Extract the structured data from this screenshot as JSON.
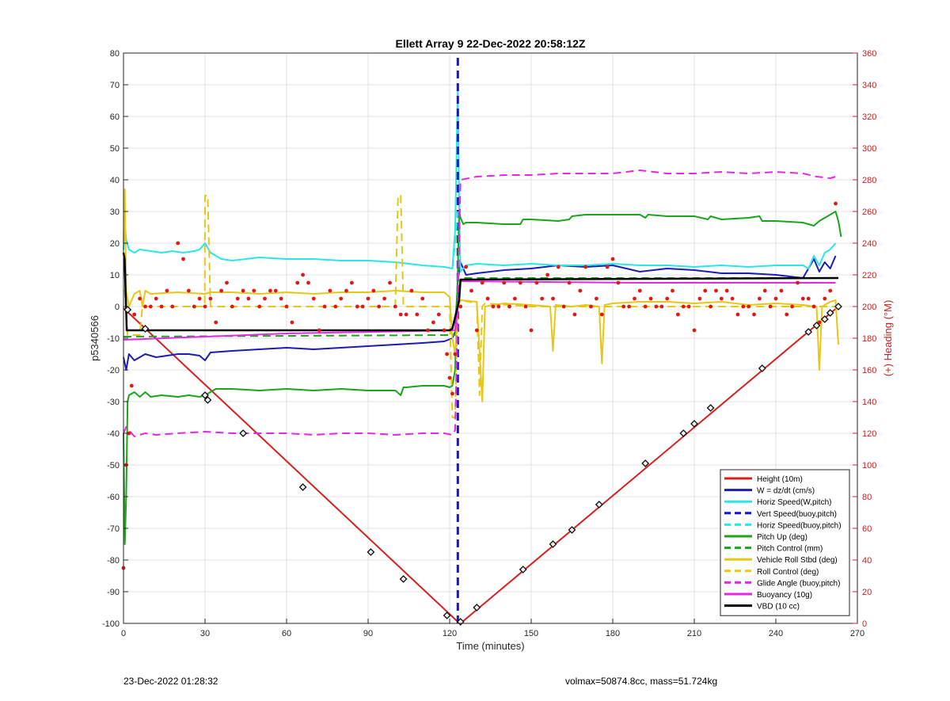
{
  "footer": {
    "left": "23-Dec-2022 01:28:32",
    "right": "volmax=50874.8cc, mass=51.724kg"
  },
  "colors": {
    "height": "#d42020",
    "w": "#1c1cb4",
    "horiz_w": "#2ae6e6",
    "vert_buoy": "#1414d2",
    "horiz_buoy": "#2ae6e6",
    "pitch": "#1aa51a",
    "pitch_control": "#1aa51a",
    "roll": "#e6c814",
    "roll_control": "#e6c814",
    "glide": "#e628e6",
    "buoyancy": "#e628e6",
    "vbd": "#000000",
    "heading": "#e01818",
    "right_axis": "#cc2020"
  },
  "chart_data": {
    "type": "line",
    "title": "Ellett Array 9 22-Dec-2022 20:58:12Z",
    "xlabel": "Time (minutes)",
    "ylabel": "p5340566",
    "y2label": "(+) Heading (°M)",
    "xlim": [
      0,
      270
    ],
    "ylim": [
      -100,
      80
    ],
    "y2lim": [
      0,
      360
    ],
    "xticks": [
      0,
      30,
      60,
      90,
      120,
      150,
      180,
      210,
      240,
      270
    ],
    "yticks": [
      -100,
      -90,
      -80,
      -70,
      -60,
      -50,
      -40,
      -30,
      -20,
      -10,
      0,
      10,
      20,
      30,
      40,
      50,
      60,
      70,
      80
    ],
    "y2ticks": [
      0,
      20,
      40,
      60,
      80,
      100,
      120,
      140,
      160,
      180,
      200,
      220,
      240,
      260,
      280,
      300,
      320,
      340,
      360
    ],
    "grid": true,
    "legend_position": "lower-right",
    "series": [
      {
        "name": "Height (10m)",
        "key": "height",
        "style": "solid",
        "width": 2,
        "x": [
          0,
          123,
          124,
          263
        ],
        "y": [
          -0.5,
          -99.5,
          -100,
          0
        ]
      },
      {
        "name": "W = dz/dt (cm/s)",
        "key": "w",
        "style": "solid",
        "width": 2,
        "x": [
          0,
          1,
          2,
          4,
          8,
          12,
          16,
          20,
          24,
          28,
          30,
          32,
          40,
          50,
          60,
          70,
          80,
          90,
          100,
          110,
          118,
          121,
          122,
          123,
          124,
          126,
          130,
          140,
          150,
          160,
          170,
          180,
          190,
          200,
          210,
          220,
          230,
          240,
          250,
          252,
          254,
          256,
          258,
          260,
          262
        ],
        "y": [
          -16,
          -20,
          -15,
          -17,
          -15,
          -16,
          -15.5,
          -15,
          -15,
          -15.5,
          -17,
          -14.5,
          -14,
          -13.5,
          -13,
          -13.5,
          -13,
          -12.5,
          -12,
          -11.5,
          -11,
          -10,
          -8,
          8,
          14,
          10,
          10.5,
          11.5,
          12,
          13,
          12.5,
          13,
          11,
          12,
          11.5,
          10.5,
          10.5,
          10,
          9,
          12,
          15,
          11,
          14,
          12,
          16
        ]
      },
      {
        "name": "Horiz Speed(W,pitch)",
        "key": "horiz_w",
        "style": "solid",
        "width": 2,
        "x": [
          0,
          0.5,
          1,
          2,
          4,
          6,
          10,
          14,
          18,
          22,
          26,
          28,
          30,
          32,
          36,
          40,
          50,
          60,
          70,
          80,
          90,
          100,
          110,
          118,
          121,
          122,
          123,
          123.5,
          124,
          126,
          130,
          140,
          150,
          160,
          170,
          180,
          190,
          200,
          210,
          220,
          230,
          240,
          250,
          252,
          254,
          256,
          258,
          260,
          262
        ],
        "y": [
          18,
          26,
          21,
          18,
          17,
          18,
          17.5,
          17,
          17.5,
          17,
          17.5,
          18,
          20,
          17,
          15,
          14.5,
          15.5,
          15,
          15,
          14.5,
          14.5,
          14,
          13,
          12.5,
          12,
          24,
          69,
          32,
          11,
          13,
          13.5,
          13,
          13.5,
          13,
          13,
          13.5,
          13,
          13,
          12.5,
          13,
          12.5,
          13,
          13,
          12,
          16,
          13,
          17,
          18,
          20
        ]
      },
      {
        "name": "Vert Speed(buoy,pitch)",
        "key": "vert_buoy",
        "style": "dashed",
        "width": 3,
        "x": [
          123,
          123,
          123,
          123
        ],
        "y": [
          -100,
          -40,
          20,
          80
        ]
      },
      {
        "name": "Horiz Speed(buoy,pitch)",
        "key": "horiz_buoy",
        "style": "dashed",
        "width": 2,
        "x": [
          121,
          122,
          123
        ],
        "y": [
          12,
          20,
          30
        ]
      },
      {
        "name": "Pitch Up (deg)",
        "key": "pitch",
        "style": "solid",
        "width": 2,
        "x": [
          0,
          0.5,
          1,
          1.5,
          2,
          4,
          6,
          8,
          10,
          14,
          20,
          24,
          28,
          30,
          34,
          40,
          50,
          60,
          70,
          80,
          90,
          100,
          102,
          103,
          104,
          110,
          118,
          120,
          121,
          122,
          123,
          123.5,
          124,
          125,
          126,
          130,
          140,
          146,
          147,
          150,
          160,
          164,
          165,
          170,
          180,
          190,
          192,
          193,
          200,
          210,
          215,
          216,
          220,
          230,
          234,
          235,
          240,
          250,
          252,
          254,
          256,
          258,
          260,
          262,
          263,
          264
        ],
        "y": [
          -40,
          -75,
          -60,
          -30,
          -28,
          -27,
          -28.5,
          -27,
          -28.5,
          -28,
          -28.5,
          -28,
          -28.5,
          -28,
          -26,
          -26,
          -26.5,
          -26,
          -26.5,
          -26,
          -26.5,
          -26.5,
          -28,
          -25.5,
          -25.5,
          -25,
          -25,
          -25.5,
          -25,
          -20,
          12,
          30,
          28,
          26,
          26.5,
          26.5,
          26,
          26,
          27.5,
          27.5,
          27,
          27.5,
          28.5,
          29,
          29,
          29,
          28,
          29,
          28.5,
          28.5,
          27.5,
          28.5,
          27.5,
          28,
          28.5,
          27,
          27,
          26.5,
          26,
          25.5,
          27,
          28,
          29,
          30,
          27,
          22
        ]
      },
      {
        "name": "Pitch Control (mm)",
        "key": "pitch_control",
        "style": "dashed",
        "width": 2,
        "x": [
          0,
          122,
          123,
          124,
          263
        ],
        "y": [
          -9.5,
          -9,
          0,
          9,
          9
        ]
      },
      {
        "name": "Vehicle Roll Stbd (deg)",
        "key": "roll",
        "style": "solid",
        "width": 2,
        "x": [
          0,
          0.5,
          1,
          2,
          4,
          6,
          7,
          8,
          10,
          20,
          30,
          32,
          40,
          50,
          60,
          70,
          80,
          90,
          100,
          110,
          118,
          120,
          121,
          122,
          123,
          124,
          130,
          132,
          133,
          140,
          150,
          157,
          158,
          159,
          165,
          170,
          175,
          176,
          177,
          180,
          190,
          200,
          210,
          220,
          230,
          240,
          250,
          255,
          256,
          257,
          260,
          262,
          263
        ],
        "y": [
          20,
          37,
          5,
          0,
          4,
          5,
          0,
          5,
          4,
          4.5,
          4,
          4.5,
          4.5,
          4,
          4.5,
          4,
          4.5,
          4.5,
          5,
          4.5,
          4.5,
          3,
          -10,
          -15,
          0,
          2,
          1.5,
          -30,
          0,
          1,
          0.5,
          0,
          -14,
          0.5,
          0,
          0.5,
          0,
          -18,
          0.5,
          1,
          1.5,
          1.5,
          1,
          1.5,
          0.5,
          1,
          0.5,
          0,
          -20,
          0,
          1.5,
          2,
          -12
        ]
      },
      {
        "name": "Roll Control (deg)",
        "key": "roll_control",
        "style": "dashed",
        "width": 2,
        "x": [
          0,
          0.5,
          1.5,
          6,
          7,
          8,
          9,
          29.9,
          30,
          31,
          32,
          33,
          34,
          100,
          101,
          102,
          103,
          118,
          120,
          121,
          122,
          123,
          124,
          130,
          131,
          132,
          133,
          150,
          170,
          190,
          210,
          230,
          262
        ],
        "y": [
          5,
          5,
          -9,
          -9,
          0,
          0,
          0,
          0,
          35,
          35,
          0,
          0,
          0,
          0,
          35,
          35,
          0,
          0,
          0,
          -35,
          -35,
          0,
          2,
          1,
          -28,
          0,
          1,
          0,
          0,
          0,
          0,
          0,
          0
        ]
      },
      {
        "name": "Glide Angle (buoy,pitch)",
        "key": "glide",
        "style": "dashed",
        "width": 2,
        "x": [
          0,
          1,
          4,
          8,
          12,
          20,
          30,
          40,
          50,
          60,
          70,
          80,
          90,
          100,
          110,
          118,
          121,
          122,
          123,
          124,
          130,
          140,
          150,
          160,
          170,
          180,
          190,
          200,
          210,
          220,
          230,
          240,
          250,
          255,
          260,
          262
        ],
        "y": [
          -40,
          -38,
          -41,
          -40,
          -40.5,
          -40,
          -39.5,
          -40,
          -40,
          -40,
          -40.5,
          -40,
          -40,
          -40.5,
          -40,
          -40,
          -40.5,
          -39,
          0,
          40,
          41,
          41.5,
          41.5,
          42,
          42,
          42,
          43,
          42,
          42,
          42.5,
          42,
          42.5,
          42,
          41,
          40.5,
          41
        ]
      },
      {
        "name": "Buoyancy (10g)",
        "key": "buoyancy",
        "style": "solid",
        "width": 2,
        "x": [
          0,
          60,
          122,
          123,
          124,
          190,
          262
        ],
        "y": [
          -10.5,
          -8.5,
          -7.5,
          0,
          8,
          7.5,
          7.5
        ]
      },
      {
        "name": "VBD (10 cc)",
        "key": "vbd",
        "style": "solid",
        "width": 2.5,
        "x": [
          0,
          0.4,
          1.2,
          120,
          121,
          123.5,
          124,
          263
        ],
        "y": [
          17,
          15,
          -7.5,
          -7.5,
          -7,
          2,
          8.5,
          9
        ]
      },
      {
        "name": "Heading",
        "key": "heading",
        "style": "dots",
        "axis": "right",
        "legend": false,
        "x": [
          0,
          1,
          2,
          3,
          4,
          6,
          8,
          10,
          12,
          14,
          16,
          18,
          20,
          22,
          24,
          26,
          28,
          30,
          32,
          34,
          36,
          38,
          40,
          42,
          44,
          46,
          48,
          50,
          52,
          54,
          56,
          58,
          60,
          62,
          64,
          66,
          68,
          70,
          72,
          74,
          76,
          78,
          80,
          82,
          84,
          86,
          88,
          90,
          92,
          94,
          96,
          98,
          100,
          102,
          104,
          106,
          108,
          110,
          112,
          114,
          116,
          118,
          119,
          120,
          121,
          122,
          124,
          126,
          128,
          130,
          132,
          134,
          136,
          138,
          140,
          142,
          144,
          146,
          148,
          150,
          152,
          154,
          156,
          158,
          160,
          162,
          164,
          166,
          168,
          170,
          172,
          174,
          176,
          178,
          180,
          182,
          184,
          186,
          188,
          190,
          192,
          194,
          196,
          198,
          200,
          202,
          204,
          206,
          208,
          210,
          212,
          214,
          216,
          218,
          220,
          222,
          224,
          226,
          228,
          230,
          232,
          234,
          236,
          238,
          240,
          242,
          244,
          246,
          248,
          250,
          252,
          254,
          256,
          258,
          260,
          262
        ],
        "y": [
          35,
          100,
          120,
          150,
          195,
          205,
          200,
          200,
          205,
          200,
          210,
          200,
          240,
          230,
          210,
          200,
          205,
          200,
          205,
          190,
          210,
          215,
          200,
          205,
          210,
          205,
          210,
          200,
          205,
          210,
          210,
          205,
          200,
          190,
          215,
          220,
          215,
          205,
          185,
          200,
          210,
          200,
          205,
          210,
          215,
          200,
          200,
          205,
          210,
          200,
          205,
          215,
          200,
          195,
          195,
          210,
          195,
          205,
          185,
          190,
          195,
          185,
          170,
          155,
          145,
          170,
          200,
          225,
          210,
          185,
          215,
          205,
          200,
          200,
          215,
          200,
          205,
          215,
          200,
          185,
          215,
          205,
          220,
          205,
          225,
          200,
          215,
          195,
          210,
          225,
          200,
          205,
          195,
          225,
          230,
          215,
          200,
          200,
          205,
          210,
          200,
          205,
          200,
          200,
          205,
          210,
          195,
          200,
          200,
          185,
          205,
          210,
          200,
          210,
          205,
          210,
          205,
          195,
          200,
          200,
          195,
          205,
          210,
          200,
          205,
          210,
          195,
          200,
          215,
          205,
          205,
          200,
          190,
          205,
          210,
          265
        ]
      },
      {
        "name": "Height markers",
        "key": "height",
        "style": "markers",
        "legend": false,
        "x": [
          1.5,
          8,
          30,
          31,
          44,
          66,
          91,
          103,
          119,
          124,
          130,
          147,
          158,
          165,
          175,
          192,
          206,
          210,
          216,
          235,
          252,
          255,
          258,
          260,
          263
        ],
        "y": [
          -1,
          -7,
          -28,
          -29.5,
          -40,
          -57,
          -77.5,
          -86,
          -97.5,
          -99.5,
          -95,
          -83,
          -75,
          -70.5,
          -62.5,
          -49.5,
          -40,
          -37,
          -32,
          -19.5,
          -8,
          -6,
          -4,
          -2,
          0
        ]
      }
    ]
  }
}
